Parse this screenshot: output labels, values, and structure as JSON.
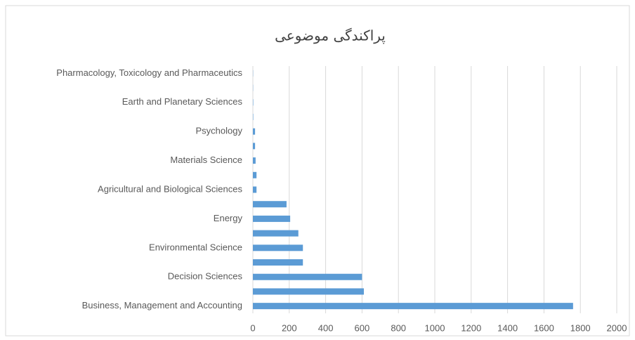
{
  "chart_data": {
    "type": "bar",
    "orientation": "horizontal",
    "title": "پراکندگی موضوعی",
    "categories": [
      "Business, Management and Accounting",
      null,
      "Decision Sciences",
      null,
      "Environmental Science",
      null,
      "Energy",
      null,
      "Agricultural and Biological Sciences",
      null,
      "Materials Science",
      null,
      "Psychology",
      null,
      "Earth and Planetary Sciences",
      null,
      "Pharmacology, Toxicology and Pharmaceutics"
    ],
    "values": [
      1760,
      610,
      600,
      275,
      275,
      250,
      205,
      185,
      20,
      20,
      15,
      12,
      12,
      2,
      2,
      1,
      1
    ],
    "color": "#5b9bd5",
    "xlim": [
      0,
      2000
    ],
    "xticks": [
      0,
      200,
      400,
      600,
      800,
      1000,
      1200,
      1400,
      1600,
      1800,
      2000
    ],
    "grid": true
  }
}
